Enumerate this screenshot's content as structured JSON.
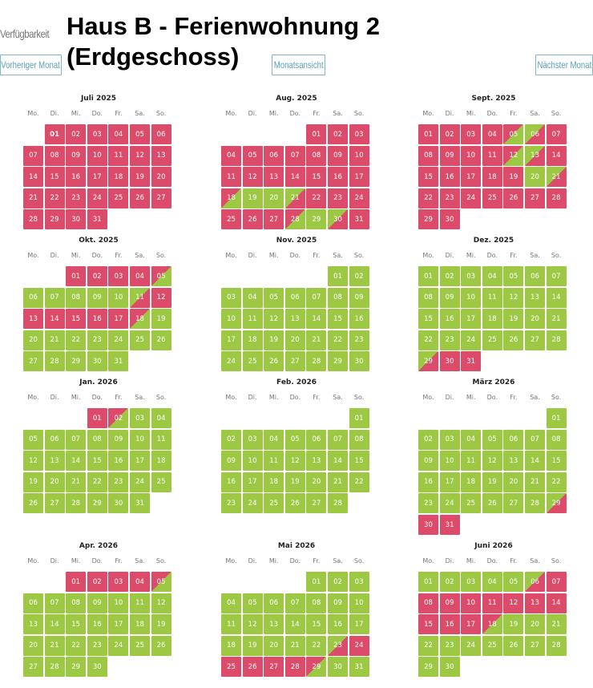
{
  "header": {
    "availability_label": "Verfügbarkeit",
    "title": "Haus B - Ferienwohnung 2 (Erdgeschoss)",
    "prev_button": "Vorheriger Monat",
    "month_view_button": "Monatsansicht",
    "next_button": "Nächster Monat"
  },
  "weekdays": [
    "Mo.",
    "Di.",
    "Mi.",
    "Do.",
    "Fr.",
    "Sa.",
    "So."
  ],
  "colors": {
    "booked": "#dd4b6b",
    "free": "#9dc843",
    "button": "#7fb6c9"
  },
  "legend_codes": {
    "b": "booked",
    "f": "free",
    "bf": "booked-until-noon, free from afternoon",
    "fb": "free until noon, booked from afternoon"
  },
  "months": [
    {
      "title": "Juli 2025",
      "offset": 1,
      "days": 31,
      "today": 1,
      "status": [
        "b",
        "b",
        "b",
        "b",
        "b",
        "b",
        "b",
        "b",
        "b",
        "b",
        "b",
        "b",
        "b",
        "b",
        "b",
        "b",
        "b",
        "b",
        "b",
        "b",
        "b",
        "b",
        "b",
        "b",
        "b",
        "b",
        "b",
        "b",
        "b",
        "b",
        "b"
      ]
    },
    {
      "title": "Aug. 2025",
      "offset": 4,
      "days": 31,
      "status": [
        "b",
        "b",
        "b",
        "b",
        "b",
        "b",
        "b",
        "b",
        "b",
        "b",
        "b",
        "b",
        "b",
        "b",
        "b",
        "b",
        "b",
        "bf",
        "f",
        "f",
        "fb",
        "b",
        "b",
        "b",
        "b",
        "b",
        "b",
        "bf",
        "f",
        "fb",
        "b"
      ]
    },
    {
      "title": "Sept. 2025",
      "offset": 0,
      "days": 30,
      "status": [
        "b",
        "b",
        "b",
        "b",
        "bf",
        "fb",
        "b",
        "b",
        "b",
        "b",
        "b",
        "bf",
        "fb",
        "b",
        "b",
        "b",
        "b",
        "b",
        "b",
        "f",
        "fb",
        "b",
        "b",
        "b",
        "b",
        "b",
        "b",
        "b",
        "b",
        "b"
      ]
    },
    {
      "title": "Okt. 2025",
      "offset": 2,
      "days": 31,
      "status": [
        "b",
        "b",
        "b",
        "b",
        "bf",
        "f",
        "f",
        "f",
        "f",
        "f",
        "fb",
        "b",
        "b",
        "b",
        "b",
        "b",
        "b",
        "bf",
        "f",
        "f",
        "f",
        "f",
        "f",
        "f",
        "f",
        "f",
        "f",
        "f",
        "f",
        "f",
        "f"
      ]
    },
    {
      "title": "Nov. 2025",
      "offset": 5,
      "days": 30,
      "status": [
        "f",
        "f",
        "f",
        "f",
        "f",
        "f",
        "f",
        "f",
        "f",
        "f",
        "f",
        "f",
        "f",
        "f",
        "f",
        "f",
        "f",
        "f",
        "f",
        "f",
        "f",
        "f",
        "f",
        "f",
        "f",
        "f",
        "f",
        "f",
        "f",
        "f"
      ]
    },
    {
      "title": "Dez. 2025",
      "offset": 0,
      "days": 31,
      "status": [
        "f",
        "f",
        "f",
        "f",
        "f",
        "f",
        "f",
        "f",
        "f",
        "f",
        "f",
        "f",
        "f",
        "f",
        "f",
        "f",
        "f",
        "f",
        "f",
        "f",
        "f",
        "f",
        "f",
        "f",
        "f",
        "f",
        "f",
        "f",
        "fb",
        "b",
        "b"
      ]
    },
    {
      "title": "Jan. 2026",
      "offset": 3,
      "days": 31,
      "status": [
        "b",
        "bf",
        "f",
        "f",
        "f",
        "f",
        "f",
        "f",
        "f",
        "f",
        "f",
        "f",
        "f",
        "f",
        "f",
        "f",
        "f",
        "f",
        "f",
        "f",
        "f",
        "f",
        "f",
        "f",
        "f",
        "f",
        "f",
        "f",
        "f",
        "f",
        "f"
      ]
    },
    {
      "title": "Feb. 2026",
      "offset": 6,
      "days": 28,
      "status": [
        "f",
        "f",
        "f",
        "f",
        "f",
        "f",
        "f",
        "f",
        "f",
        "f",
        "f",
        "f",
        "f",
        "f",
        "f",
        "f",
        "f",
        "f",
        "f",
        "f",
        "f",
        "f",
        "f",
        "f",
        "f",
        "f",
        "f",
        "f"
      ]
    },
    {
      "title": "März 2026",
      "offset": 6,
      "days": 31,
      "status": [
        "f",
        "f",
        "f",
        "f",
        "f",
        "f",
        "f",
        "f",
        "f",
        "f",
        "f",
        "f",
        "f",
        "f",
        "f",
        "f",
        "f",
        "f",
        "f",
        "f",
        "f",
        "f",
        "f",
        "f",
        "f",
        "f",
        "f",
        "f",
        "fb",
        "b",
        "b"
      ]
    },
    {
      "title": "Apr. 2026",
      "offset": 2,
      "days": 30,
      "status": [
        "b",
        "b",
        "b",
        "b",
        "bf",
        "f",
        "f",
        "f",
        "f",
        "f",
        "f",
        "f",
        "f",
        "f",
        "f",
        "f",
        "f",
        "f",
        "f",
        "f",
        "f",
        "f",
        "f",
        "f",
        "f",
        "f",
        "f",
        "f",
        "f",
        "f"
      ]
    },
    {
      "title": "Mai 2026",
      "offset": 4,
      "days": 31,
      "status": [
        "f",
        "f",
        "f",
        "f",
        "f",
        "f",
        "f",
        "f",
        "f",
        "f",
        "f",
        "f",
        "f",
        "f",
        "f",
        "f",
        "f",
        "f",
        "f",
        "f",
        "f",
        "f",
        "fb",
        "b",
        "b",
        "b",
        "b",
        "b",
        "bf",
        "f",
        "f"
      ]
    },
    {
      "title": "Juni 2026",
      "offset": 0,
      "days": 30,
      "status": [
        "f",
        "f",
        "f",
        "f",
        "f",
        "fb",
        "b",
        "b",
        "b",
        "b",
        "b",
        "b",
        "b",
        "b",
        "b",
        "b",
        "b",
        "bf",
        "f",
        "f",
        "f",
        "f",
        "f",
        "f",
        "f",
        "f",
        "f",
        "f",
        "f",
        "f"
      ]
    }
  ]
}
